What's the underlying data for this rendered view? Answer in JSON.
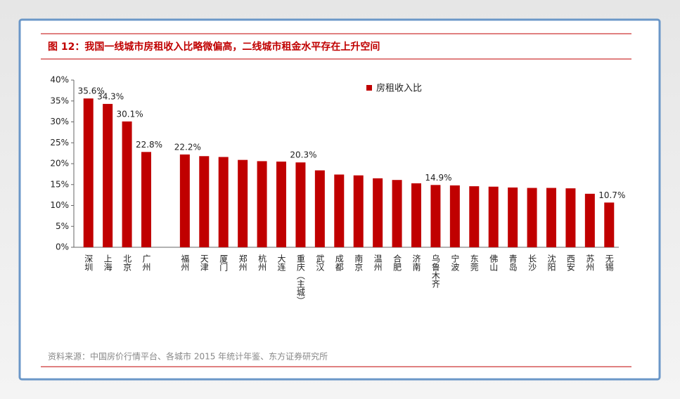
{
  "chart_data": {
    "type": "bar",
    "title": "图 12：我国一线城市房租收入比略微偏高，二线城市租金水平存在上升空间",
    "source": "资料来源：中国房价行情平台、各城市 2015 年统计年鉴、东方证券研究所",
    "categories": [
      "深圳",
      "上海",
      "北京",
      "广州",
      null,
      "福州",
      "天津",
      "厦门",
      "郑州",
      "杭州",
      "大连",
      "重庆（主城）",
      "武汉",
      "成都",
      "南京",
      "温州",
      "合肥",
      "济南",
      "乌鲁木齐",
      "宁波",
      "东莞",
      "佛山",
      "青岛",
      "长沙",
      "沈阳",
      "西安",
      "苏州",
      "无锡"
    ],
    "series": [
      {
        "name": "房租收入比",
        "color": "#c00000",
        "values": [
          35.6,
          34.3,
          30.1,
          22.8,
          null,
          22.2,
          21.8,
          21.6,
          20.9,
          20.6,
          20.5,
          20.3,
          18.4,
          17.4,
          17.2,
          16.5,
          16.1,
          15.3,
          14.9,
          14.8,
          14.6,
          14.5,
          14.3,
          14.2,
          14.2,
          14.1,
          12.8,
          10.7
        ],
        "value_labels": [
          "35.6%",
          "34.3%",
          "30.1%",
          "22.8%",
          null,
          "22.2%",
          null,
          null,
          null,
          null,
          null,
          "20.3%",
          null,
          null,
          null,
          null,
          null,
          null,
          "14.9%",
          null,
          null,
          null,
          null,
          null,
          null,
          null,
          null,
          "10.7%"
        ]
      }
    ],
    "ylim": [
      0,
      40
    ],
    "yticks": [
      {
        "value": 0,
        "label": "0%"
      },
      {
        "value": 5,
        "label": "5%"
      },
      {
        "value": 10,
        "label": "10%"
      },
      {
        "value": 15,
        "label": "15%"
      },
      {
        "value": 20,
        "label": "20%"
      },
      {
        "value": 25,
        "label": "25%"
      },
      {
        "value": 30,
        "label": "30%"
      },
      {
        "value": 35,
        "label": "35%"
      },
      {
        "value": 40,
        "label": "40%"
      }
    ],
    "legend": "top-right"
  }
}
